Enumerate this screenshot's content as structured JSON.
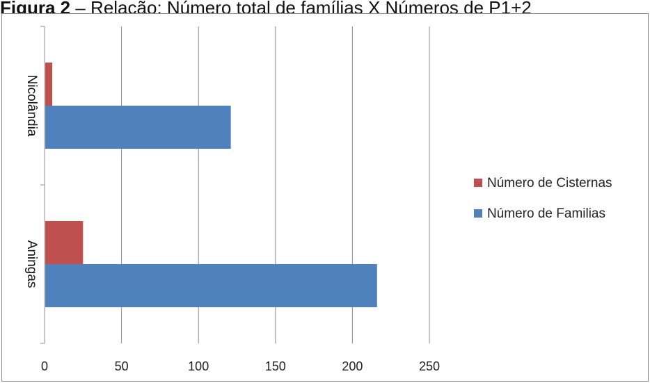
{
  "caption": {
    "prefix": "Figura 2",
    "text": " – Relação: Número total de famílias X Números de P1+2"
  },
  "chart_data": {
    "type": "bar",
    "orientation": "horizontal",
    "title": "",
    "xlabel": "",
    "ylabel": "",
    "categories": [
      "Aningas",
      "Nicolândia"
    ],
    "series": [
      {
        "name": "Número de Familias",
        "color": "#4f81bd",
        "values": [
          216,
          121
        ]
      },
      {
        "name": "Número de Cisternas",
        "color": "#c0504d",
        "values": [
          25,
          5
        ]
      }
    ],
    "xlim": [
      0,
      250
    ],
    "xticks": [
      0,
      50,
      100,
      150,
      200,
      250
    ],
    "xtick_labels": [
      "0",
      "50",
      "100",
      "150",
      "200",
      "250"
    ],
    "grid": "vertical",
    "legend_position": "right",
    "legend_order": [
      "Número de Cisternas",
      "Número de Familias"
    ]
  }
}
